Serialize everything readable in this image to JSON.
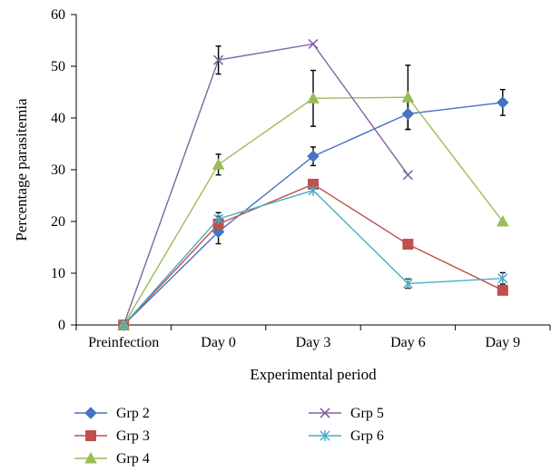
{
  "chart_data": {
    "type": "line",
    "categories": [
      "Preinfection",
      "Day 0",
      "Day 3",
      "Day 6",
      "Day 9"
    ],
    "xlabel": "Experimental period",
    "ylabel": "Percentage parasitemia",
    "ylim": [
      0,
      60
    ],
    "yticks": [
      0,
      10,
      20,
      30,
      40,
      50,
      60
    ],
    "grid": false,
    "legend_position": "bottom",
    "series": [
      {
        "name": "Grp 2",
        "color": "#4472C4",
        "marker": "diamond",
        "values": [
          0,
          18,
          32.6,
          40.8,
          43
        ],
        "errors": [
          0,
          2.3,
          1.8,
          3,
          2.5
        ]
      },
      {
        "name": "Grp 3",
        "color": "#C0504D",
        "marker": "square",
        "values": [
          0,
          19.5,
          27.2,
          15.6,
          6.7
        ],
        "errors": [
          0,
          1.5,
          0,
          0,
          0
        ]
      },
      {
        "name": "Grp 4",
        "color": "#9BBB59",
        "marker": "triangle",
        "values": [
          0,
          31,
          43.8,
          44,
          20
        ],
        "errors": [
          0,
          2,
          5.4,
          6.2,
          0
        ]
      },
      {
        "name": "Grp 5",
        "color": "#8064A2",
        "marker": "x",
        "values": [
          0,
          51.2,
          54.3,
          29,
          null
        ],
        "errors": [
          0,
          2.7,
          0,
          0,
          null
        ]
      },
      {
        "name": "Grp 6",
        "color": "#4BACC6",
        "marker": "star",
        "values": [
          0,
          20.5,
          26,
          8,
          9
        ],
        "errors": [
          0,
          1.2,
          0,
          0.9,
          1.1
        ]
      }
    ]
  }
}
